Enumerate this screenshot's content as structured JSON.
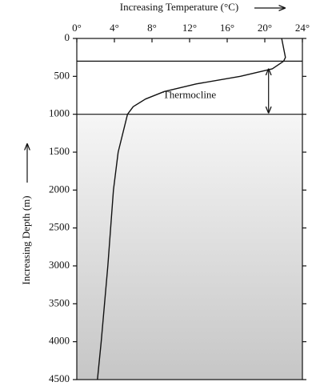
{
  "chart_data": {
    "type": "line",
    "x_label": "Increasing Temperature (°C)",
    "y_label": "Increasing Depth (m)",
    "annotation": "Thermocline",
    "x": [
      21.8,
      22.2,
      22.0,
      20.8,
      17.4,
      12.7,
      9.3,
      7.3,
      6.0,
      5.4,
      4.4,
      3.9,
      3.3,
      2.6,
      2.2
    ],
    "values": [
      0,
      250,
      300,
      400,
      500,
      600,
      700,
      800,
      900,
      1000,
      1500,
      2000,
      3000,
      4000,
      4500
    ],
    "color": "#111111",
    "xlim": [
      0,
      24
    ],
    "xticks": [
      {
        "value": 0,
        "label": "0°"
      },
      {
        "value": 4,
        "label": "4°"
      },
      {
        "value": 8,
        "label": "8°"
      },
      {
        "value": 12,
        "label": "12°"
      },
      {
        "value": 16,
        "label": "16°"
      },
      {
        "value": 20,
        "label": "20°"
      },
      {
        "value": 24,
        "label": "24°"
      }
    ],
    "ylim": [
      0,
      4500
    ],
    "yticks": [
      0,
      500,
      1000,
      1500,
      2000,
      2500,
      3000,
      3500,
      4000,
      4500
    ],
    "y_inverted": true,
    "hlines": [
      300,
      1000
    ],
    "arrow_x": 20.4
  }
}
